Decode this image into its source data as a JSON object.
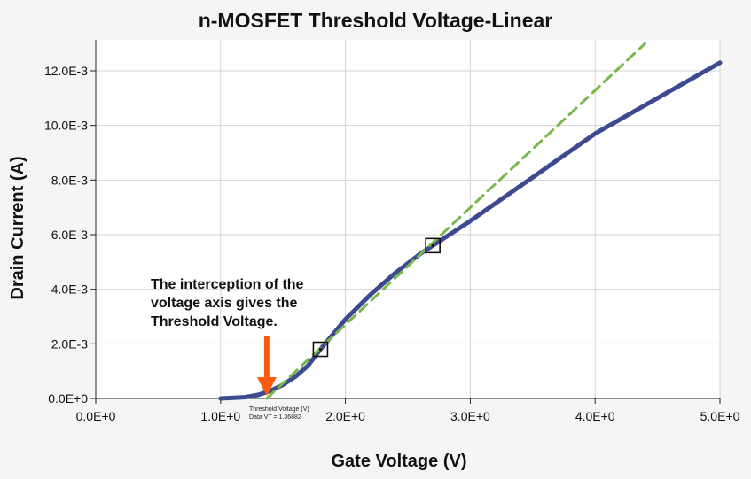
{
  "chart_data": {
    "type": "line",
    "title": "n-MOSFET Threshold Voltage-Linear",
    "xlabel": "Gate Voltage (V)",
    "ylabel": "Drain Current (A)",
    "xlim": [
      0,
      5
    ],
    "ylim": [
      0,
      0.013
    ],
    "x_ticks": [
      0,
      1,
      2,
      3,
      4,
      5
    ],
    "x_tick_labels": [
      "0.0E+0",
      "1.0E+0",
      "2.0E+0",
      "3.0E+0",
      "4.0E+0",
      "5.0E+0"
    ],
    "y_ticks": [
      0,
      0.002,
      0.004,
      0.006,
      0.008,
      0.01,
      0.012
    ],
    "y_tick_labels": [
      "0.0E+0",
      "2.0E-3",
      "4.0E-3",
      "6.0E-3",
      "8.0E-3",
      "10.0E-3",
      "12.0E-3"
    ],
    "grid": true,
    "series": [
      {
        "color": "#3d4a8f",
        "style": "solid",
        "x": [
          1.0,
          1.2,
          1.3,
          1.4,
          1.5,
          1.6,
          1.7,
          1.8,
          2.0,
          2.2,
          2.4,
          2.6,
          2.7,
          3.0,
          3.5,
          4.0,
          4.5,
          5.0
        ],
        "y": [
          0.0,
          5e-05,
          0.00013,
          0.00028,
          0.0005,
          0.0008,
          0.0012,
          0.0018,
          0.0029,
          0.0038,
          0.0046,
          0.0053,
          0.0056,
          0.0065,
          0.0081,
          0.0097,
          0.011,
          0.0123
        ]
      },
      {
        "color": "#77b84a",
        "style": "dashed",
        "x": [
          1.37,
          4.4
        ],
        "y": [
          0.0,
          0.013
        ]
      }
    ],
    "markers": [
      {
        "x": 1.8,
        "y": 0.0018
      },
      {
        "x": 2.7,
        "y": 0.0056
      }
    ],
    "annotations": {
      "note_lines": [
        "The interception of the",
        "voltage axis gives the",
        "Threshold Voltage."
      ],
      "arrow_color": "#ff5a0a",
      "arrow_target": {
        "x": 1.37,
        "y": 0.0
      },
      "vt_lines": [
        "Threshold Voltage (V)",
        "Data VT = 1.36882"
      ]
    }
  }
}
